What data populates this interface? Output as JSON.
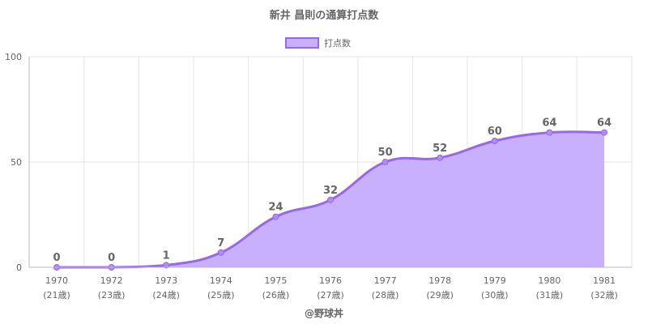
{
  "chart_data": {
    "type": "area",
    "title": "新井 昌則の通算打点数",
    "categories": [
      "1970",
      "1972",
      "1973",
      "1974",
      "1975",
      "1976",
      "1977",
      "1978",
      "1979",
      "1980",
      "1981"
    ],
    "sub_labels": [
      "(21歳)",
      "(23歳)",
      "(24歳)",
      "(25歳)",
      "(26歳)",
      "(27歳)",
      "(28歳)",
      "(29歳)",
      "(30歳)",
      "(31歳)",
      "(32歳)"
    ],
    "series": [
      {
        "name": "打点数",
        "values": [
          0,
          0,
          1,
          7,
          24,
          32,
          50,
          52,
          60,
          64,
          64
        ]
      }
    ],
    "ylim": [
      0,
      100
    ],
    "yticks": [
      0,
      50,
      100
    ],
    "grid": true,
    "legend_position": "top",
    "footer": "@野球丼",
    "colors": {
      "line": "#9966ee",
      "fill": "#c8b0ff",
      "point": "#b08cf5",
      "grid": "#e5e5e5",
      "axis": "#bbbbbb",
      "text": "#666666"
    }
  }
}
